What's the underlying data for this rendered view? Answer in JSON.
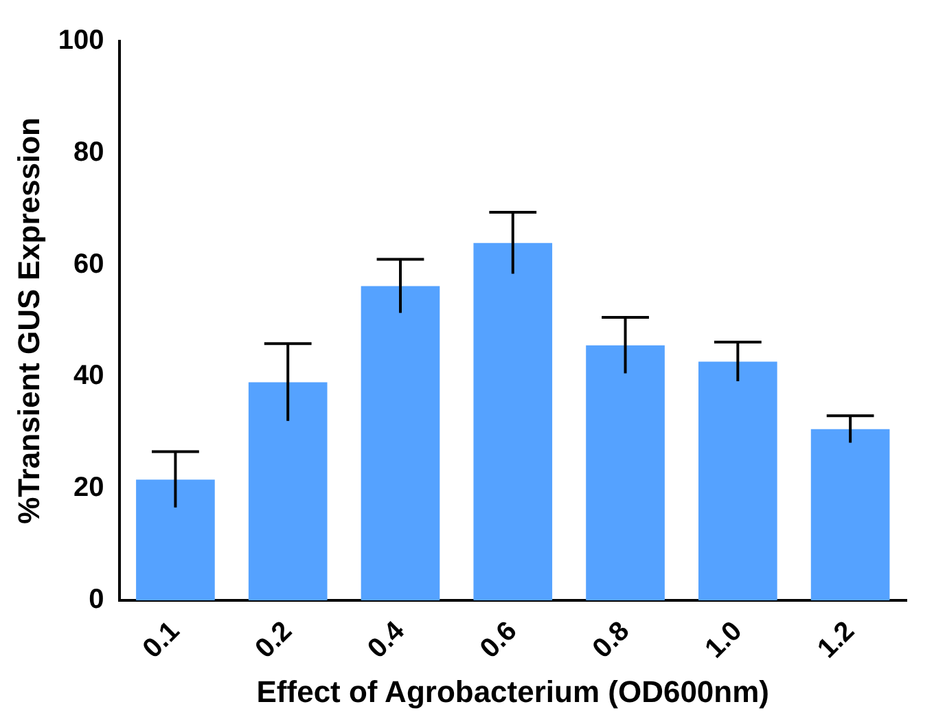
{
  "chart_data": {
    "type": "bar",
    "xlabel": "Effect of Agrobacterium (OD600nm)",
    "ylabel": "%Transient GUS Expression",
    "categories": [
      "0.1",
      "0.2",
      "0.4",
      "0.6",
      "0.8",
      "1.0",
      "1.2"
    ],
    "values": [
      21.6,
      39,
      56.2,
      63.9,
      45.6,
      42.7,
      30.6
    ],
    "errors": [
      5,
      6.9,
      4.8,
      5.5,
      5,
      3.5,
      2.4
    ],
    "color": "#55a2ff",
    "ylim": [
      0,
      100
    ],
    "yticks": [
      0,
      20,
      40,
      60,
      80,
      100
    ],
    "grid": false,
    "legend": false
  }
}
